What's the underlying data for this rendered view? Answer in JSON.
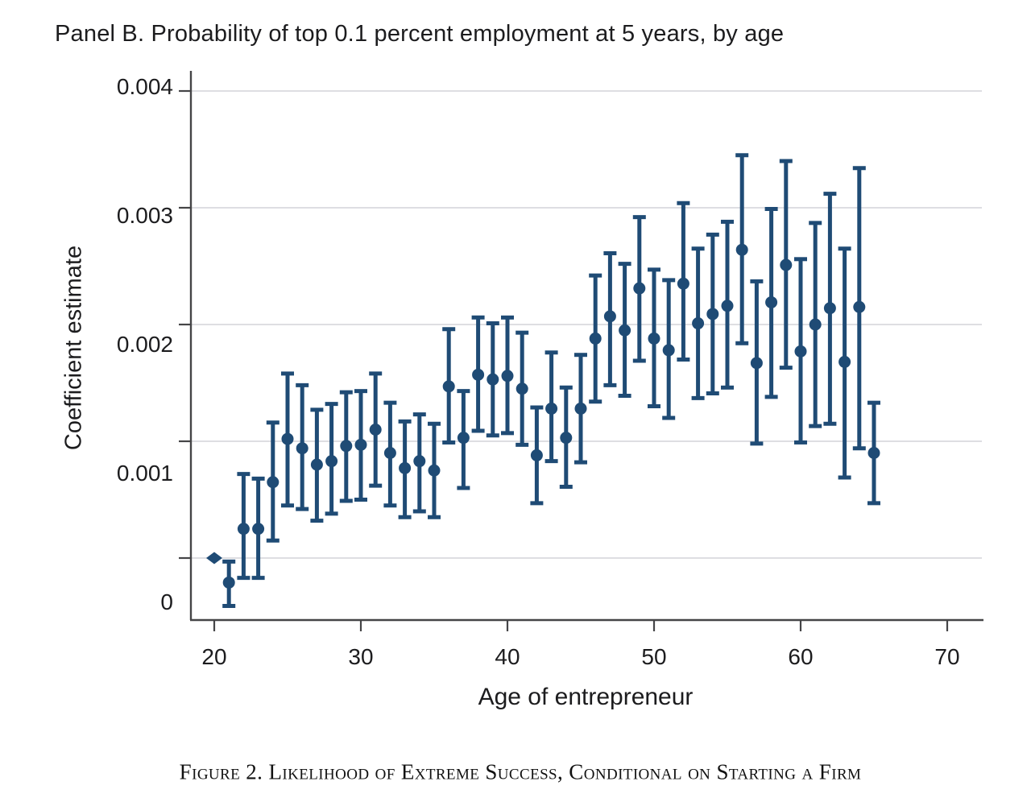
{
  "chart_data": {
    "type": "scatter",
    "subtype": "coefficient-errorbar-plot",
    "title": "Panel B. Probability of top 0.1 percent employment at 5 years, by age",
    "xlabel": "Age of entrepreneur",
    "ylabel": "Coefficient estimate",
    "caption": "Figure 2. Likelihood of Extreme Success, Conditional on Starting a Firm",
    "x_ticks": [
      20,
      30,
      40,
      50,
      60,
      70
    ],
    "y_ticks": [
      0,
      0.001,
      0.002,
      0.003,
      0.004
    ],
    "y_tick_labels": [
      "0",
      "0.001",
      "0.002",
      "0.003",
      "0.004"
    ],
    "xlim": [
      18.4,
      72.4
    ],
    "ylim": [
      -0.00053,
      0.00417
    ],
    "grid": true,
    "legend": null,
    "reference_marker": "diamond",
    "colors": {
      "marker": "#1f4b75",
      "grid": "#d4d4d8",
      "axis": "#454547",
      "text": "#1c1c1e",
      "background": "#ffffff"
    },
    "series": [
      {
        "name": "coefficient-estimates",
        "ages": [
          20,
          21,
          22,
          23,
          24,
          25,
          26,
          27,
          28,
          29,
          30,
          31,
          32,
          33,
          34,
          35,
          36,
          37,
          38,
          39,
          40,
          41,
          42,
          43,
          44,
          45,
          46,
          47,
          48,
          49,
          50,
          51,
          52,
          53,
          54,
          55,
          56,
          57,
          58,
          59,
          60,
          61,
          62,
          63,
          64,
          65
        ],
        "estimates": [
          0.0,
          -0.00021,
          0.00025,
          0.00025,
          0.00065,
          0.00102,
          0.00094,
          0.0008,
          0.00083,
          0.00096,
          0.00097,
          0.0011,
          0.0009,
          0.00077,
          0.00083,
          0.00075,
          0.00147,
          0.00103,
          0.00157,
          0.00153,
          0.00156,
          0.00145,
          0.00088,
          0.00128,
          0.00103,
          0.00128,
          0.00188,
          0.00207,
          0.00195,
          0.00231,
          0.00188,
          0.00178,
          0.00235,
          0.00201,
          0.00209,
          0.00216,
          0.00264,
          0.00167,
          0.00219,
          0.00251,
          0.00177,
          0.002,
          0.00214,
          0.00168,
          0.00215,
          0.0009
        ],
        "ci_low": [
          null,
          -0.00041,
          -0.00017,
          -0.00017,
          0.00015,
          0.00045,
          0.00042,
          0.00032,
          0.00038,
          0.00049,
          0.0005,
          0.00062,
          0.00045,
          0.00035,
          0.0004,
          0.00035,
          0.00099,
          0.0006,
          0.00109,
          0.00105,
          0.00107,
          0.00097,
          0.00047,
          0.00083,
          0.00061,
          0.00082,
          0.00134,
          0.00148,
          0.00139,
          0.00169,
          0.0013,
          0.0012,
          0.0017,
          0.00137,
          0.00141,
          0.00146,
          0.00184,
          0.00098,
          0.00138,
          0.00163,
          0.00099,
          0.00113,
          0.00115,
          0.00069,
          0.00094,
          0.00047
        ],
        "ci_high": [
          null,
          -3e-05,
          0.00072,
          0.00068,
          0.00116,
          0.00158,
          0.00148,
          0.00127,
          0.00132,
          0.00142,
          0.00143,
          0.00158,
          0.00133,
          0.00117,
          0.00123,
          0.00115,
          0.00196,
          0.00143,
          0.00206,
          0.00201,
          0.00206,
          0.00193,
          0.00129,
          0.00176,
          0.00146,
          0.00174,
          0.00242,
          0.00261,
          0.00252,
          0.00292,
          0.00247,
          0.00238,
          0.00304,
          0.00265,
          0.00277,
          0.00288,
          0.00345,
          0.00237,
          0.00299,
          0.0034,
          0.00256,
          0.00287,
          0.00312,
          0.00265,
          0.00334,
          0.00133
        ]
      }
    ]
  }
}
